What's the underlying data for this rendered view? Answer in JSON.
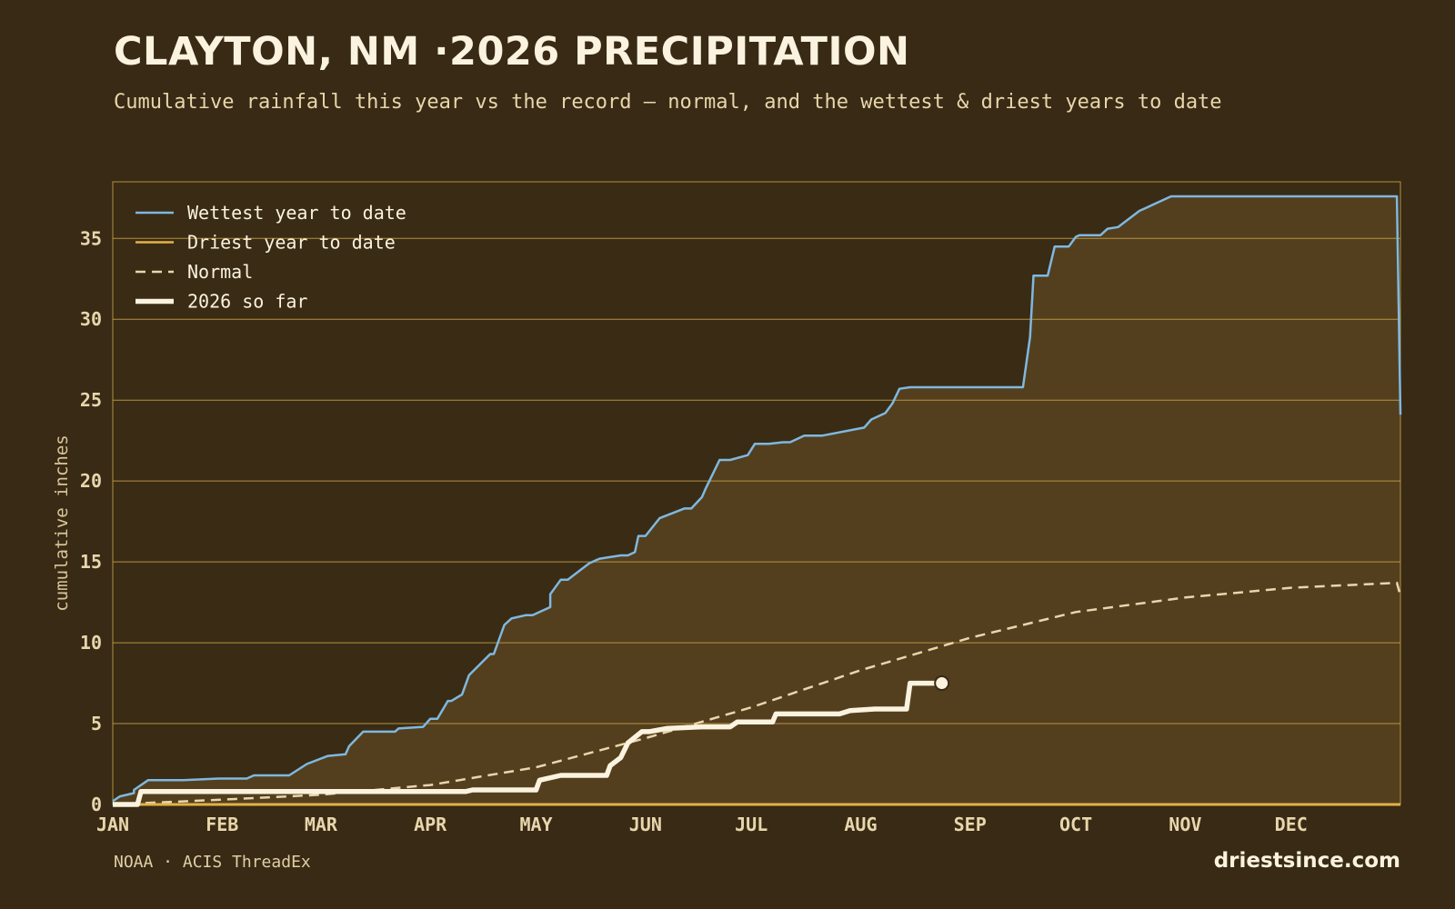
{
  "page": {
    "title": "CLAYTON, NM ·2026 PRECIPITATION",
    "subtitle": "Cumulative rainfall this year vs the record — normal, and the wettest & driest years to date",
    "source": "NOAA · ACIS ThreadEx",
    "brand": "driestsince.com"
  },
  "colors": {
    "background": "#382a14",
    "band_fill": "#533f1e",
    "plot_bg": "#3a2b14",
    "grid": "#c9a24a",
    "wettest": "#7fb8e0",
    "driest": "#e3b14a",
    "normal": "#e8d6ac",
    "current": "#fbf3df",
    "text": "#e8d6ac"
  },
  "chart_data": {
    "type": "line",
    "title": "CLAYTON, NM ·2026 PRECIPITATION",
    "xlabel": "",
    "ylabel": "cumulative inches",
    "xlim": [
      0,
      365
    ],
    "ylim": [
      0,
      38.5
    ],
    "y_ticks": [
      0,
      5,
      10,
      15,
      20,
      25,
      30,
      35
    ],
    "x_ticks": [
      {
        "label": "JAN",
        "day": 0
      },
      {
        "label": "FEB",
        "day": 31
      },
      {
        "label": "MAR",
        "day": 59
      },
      {
        "label": "APR",
        "day": 90
      },
      {
        "label": "MAY",
        "day": 120
      },
      {
        "label": "JUN",
        "day": 151
      },
      {
        "label": "JUL",
        "day": 181
      },
      {
        "label": "AUG",
        "day": 212
      },
      {
        "label": "SEP",
        "day": 243
      },
      {
        "label": "OCT",
        "day": 273
      },
      {
        "label": "NOV",
        "day": 304
      },
      {
        "label": "DEC",
        "day": 334
      }
    ],
    "grid": true,
    "legend_position": "top-left",
    "series": [
      {
        "name": "Wettest year to date",
        "style": "solid",
        "x": [
          0,
          2,
          6,
          6,
          10,
          12,
          13,
          13,
          20,
          30,
          38,
          40,
          50,
          55,
          61,
          66,
          67,
          71,
          73,
          74,
          76,
          80,
          81,
          88,
          90,
          92,
          95,
          96,
          99,
          101,
          107,
          108,
          111,
          113,
          117,
          118,
          119,
          124,
          124,
          127,
          129,
          135,
          137,
          138,
          144,
          146,
          148,
          149,
          151,
          155,
          162,
          164,
          167,
          168,
          172,
          175,
          180,
          182,
          184,
          186,
          190,
          192,
          194,
          196,
          201,
          213,
          215,
          219,
          221,
          223,
          226,
          230,
          256,
          258,
          260,
          261,
          265,
          267,
          271,
          273,
          274,
          280,
          282,
          285,
          291,
          293,
          295,
          296,
          300,
          304,
          310,
          320,
          330,
          340,
          350,
          361,
          364,
          365
        ],
        "y": [
          0.2,
          0.5,
          0.7,
          0.9,
          1.5,
          1.5,
          1.5,
          1.5,
          1.5,
          1.6,
          1.6,
          1.8,
          1.8,
          2.5,
          3.0,
          3.1,
          3.6,
          4.5,
          4.5,
          4.5,
          4.5,
          4.5,
          4.7,
          4.8,
          5.3,
          5.3,
          6.4,
          6.4,
          6.8,
          8.0,
          9.3,
          9.3,
          11.1,
          11.5,
          11.7,
          11.7,
          11.7,
          12.2,
          13.0,
          13.9,
          13.9,
          14.9,
          15.1,
          15.2,
          15.4,
          15.4,
          15.6,
          16.6,
          16.6,
          17.7,
          18.3,
          18.3,
          19.0,
          19.5,
          21.3,
          21.3,
          21.6,
          22.3,
          22.3,
          22.3,
          22.4,
          22.4,
          22.6,
          22.8,
          22.8,
          23.3,
          23.8,
          24.2,
          24.8,
          25.7,
          25.8,
          25.8,
          25.8,
          25.8,
          28.9,
          32.7,
          32.7,
          34.5,
          34.5,
          35.1,
          35.2,
          35.2,
          35.6,
          35.7,
          36.7,
          36.9,
          37.1,
          37.2,
          37.6,
          37.6,
          37.6,
          37.6,
          37.6,
          37.6,
          37.6,
          37.6,
          37.6,
          24.1
        ]
      },
      {
        "name": "Driest year to date",
        "style": "solid",
        "x": [
          0,
          365
        ],
        "y": [
          0,
          0
        ]
      },
      {
        "name": "Normal",
        "style": "dashed",
        "x": [
          0,
          31,
          59,
          90,
          120,
          151,
          181,
          212,
          243,
          273,
          304,
          334,
          364,
          365
        ],
        "y": [
          0.0,
          0.3,
          0.6,
          1.2,
          2.3,
          4.1,
          6.0,
          8.3,
          10.3,
          11.9,
          12.8,
          13.4,
          13.7,
          12.9
        ]
      },
      {
        "name": "2026 so far",
        "style": "solid-thick",
        "x": [
          0,
          7,
          8,
          40,
          60,
          80,
          100,
          102,
          120,
          121,
          127,
          131,
          132,
          140,
          141,
          144,
          146,
          150,
          152,
          157,
          167,
          175,
          177,
          187,
          188,
          199,
          206,
          209,
          216,
          218,
          221,
          225,
          226,
          235,
          235
        ],
        "y": [
          0.0,
          0.0,
          0.8,
          0.8,
          0.8,
          0.8,
          0.8,
          0.9,
          0.9,
          1.5,
          1.8,
          1.8,
          1.8,
          1.8,
          2.4,
          2.9,
          3.8,
          4.5,
          4.5,
          4.7,
          4.8,
          4.8,
          5.1,
          5.1,
          5.6,
          5.6,
          5.6,
          5.8,
          5.9,
          5.9,
          5.9,
          5.9,
          7.5,
          7.5,
          7.5
        ]
      }
    ],
    "current_point": {
      "x": 235,
      "y": 7.5
    }
  }
}
